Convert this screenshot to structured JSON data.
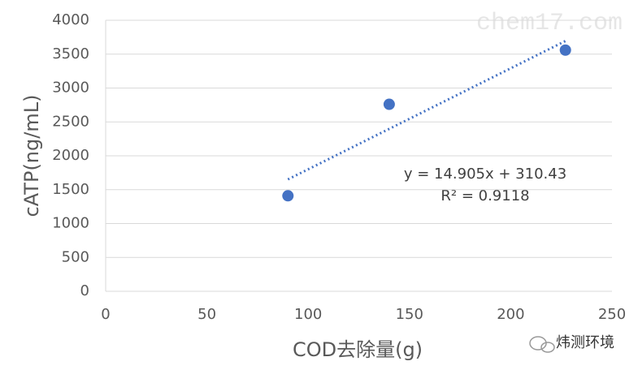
{
  "chart_data": {
    "type": "scatter",
    "x_label": "COD去除量(g)",
    "y_label": "cATP(ng/mL)",
    "series": [
      {
        "color": "#4472c4",
        "x": [
          90,
          140,
          227
        ],
        "values": [
          1410,
          2760,
          3560
        ]
      }
    ],
    "trendline": {
      "slope": 14.905,
      "intercept": 310.43,
      "color": "#4472c4",
      "equation": "y = 14.905x + 310.43",
      "r_squared": "R² = 0.9118"
    },
    "xlim": [
      0,
      250
    ],
    "xticks": [
      0,
      50,
      100,
      150,
      200,
      250
    ],
    "ylim": [
      0,
      4000
    ],
    "yticks": [
      0,
      500,
      1000,
      1500,
      2000,
      2500,
      3000,
      3500,
      4000
    ],
    "grid": true
  },
  "watermarks": {
    "site": "chem17.com",
    "brand": "炜测环境"
  }
}
